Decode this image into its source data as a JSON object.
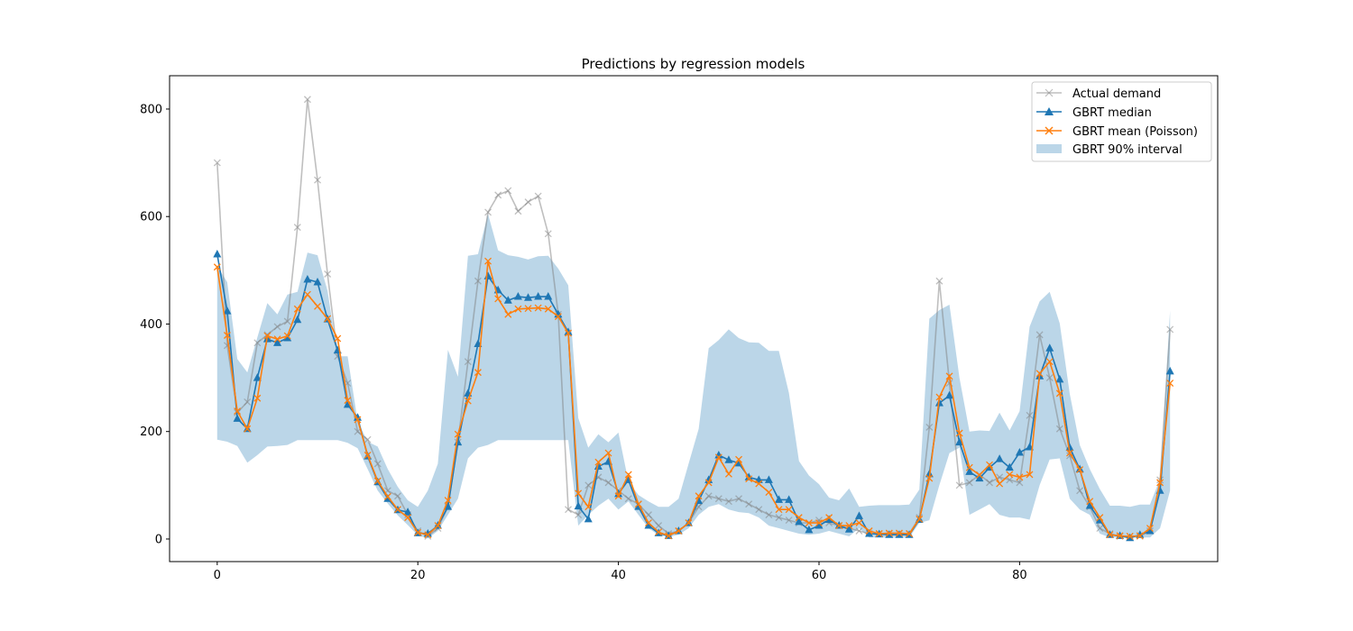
{
  "chart_data": {
    "type": "line",
    "title": "Predictions by regression models",
    "xlabel": "",
    "ylabel": "",
    "xlim": [
      -4.75,
      99.75
    ],
    "ylim": [
      -42,
      862
    ],
    "xticks": [
      0,
      20,
      40,
      60,
      80
    ],
    "yticks": [
      0,
      200,
      400,
      600,
      800
    ],
    "grid": false,
    "legend_position": "top-right",
    "colors": {
      "actual": "#808080",
      "median": "#1f77b4",
      "mean": "#ff7f0e",
      "interval": "#1f77b4"
    },
    "series": [
      {
        "name": "Actual demand",
        "style": "line-x",
        "values": [
          700,
          360,
          235,
          255,
          365,
          380,
          395,
          405,
          580,
          818,
          668,
          493,
          340,
          290,
          200,
          185,
          140,
          90,
          80,
          45,
          15,
          5,
          20,
          60,
          180,
          330,
          480,
          608,
          640,
          648,
          610,
          627,
          638,
          568,
          418,
          55,
          45,
          100,
          115,
          105,
          90,
          75,
          65,
          45,
          25,
          10,
          15,
          30,
          60,
          80,
          75,
          70,
          75,
          65,
          55,
          45,
          40,
          35,
          30,
          30,
          35,
          30,
          25,
          20,
          15,
          10,
          10,
          10,
          10,
          10,
          40,
          208,
          480,
          290,
          100,
          105,
          120,
          105,
          115,
          110,
          105,
          230,
          380,
          300,
          205,
          155,
          90,
          60,
          20,
          10,
          5,
          5,
          5,
          15,
          110,
          390
        ]
      },
      {
        "name": "GBRT median",
        "style": "line-triangle",
        "values": [
          530,
          424,
          224,
          205,
          300,
          372,
          365,
          374,
          408,
          483,
          478,
          409,
          351,
          250,
          226,
          154,
          106,
          75,
          54,
          50,
          11,
          10,
          25,
          60,
          180,
          271,
          363,
          489,
          463,
          444,
          451,
          449,
          451,
          451,
          418,
          385,
          61,
          37,
          135,
          144,
          84,
          110,
          60,
          25,
          11,
          6,
          15,
          30,
          71,
          110,
          156,
          147,
          141,
          115,
          110,
          110,
          73,
          73,
          32,
          17,
          25,
          36,
          25,
          18,
          43,
          10,
          9,
          8,
          8,
          8,
          36,
          121,
          253,
          267,
          180,
          125,
          113,
          133,
          149,
          133,
          161,
          171,
          303,
          355,
          297,
          170,
          130,
          62,
          35,
          8,
          6,
          2,
          8,
          15,
          90,
          312
        ]
      },
      {
        "name": "GBRT mean (Poisson)",
        "style": "line-x",
        "values": [
          506,
          379,
          238,
          205,
          262,
          378,
          372,
          378,
          428,
          455,
          433,
          410,
          373,
          258,
          222,
          156,
          108,
          79,
          55,
          40,
          12,
          8,
          25,
          72,
          195,
          257,
          310,
          517,
          447,
          418,
          428,
          429,
          430,
          428,
          414,
          383,
          85,
          60,
          143,
          160,
          80,
          120,
          65,
          30,
          13,
          6,
          15,
          30,
          80,
          105,
          152,
          121,
          148,
          112,
          103,
          87,
          55,
          55,
          40,
          30,
          30,
          40,
          25,
          25,
          30,
          15,
          10,
          11,
          11,
          10,
          37,
          113,
          264,
          303,
          197,
          133,
          119,
          138,
          103,
          120,
          115,
          120,
          308,
          330,
          271,
          160,
          129,
          70,
          40,
          8,
          6,
          5,
          6,
          20,
          105,
          290
        ]
      },
      {
        "name": "GBRT 90% interval",
        "style": "band",
        "lower": [
          185,
          181,
          173,
          142,
          156,
          172,
          173,
          175,
          184,
          184,
          184,
          184,
          184,
          179,
          169,
          130,
          90,
          66,
          44,
          26,
          7,
          1,
          15,
          45,
          75,
          150,
          170,
          175,
          184,
          184,
          184,
          184,
          184,
          184,
          184,
          184,
          25,
          45,
          62,
          75,
          55,
          70,
          45,
          20,
          7,
          4,
          8,
          20,
          45,
          60,
          65,
          55,
          50,
          48,
          40,
          25,
          20,
          15,
          10,
          8,
          10,
          15,
          10,
          5,
          20,
          3,
          3,
          3,
          3,
          3,
          30,
          35,
          100,
          160,
          170,
          45,
          55,
          65,
          45,
          40,
          40,
          36,
          100,
          148,
          150,
          75,
          55,
          45,
          10,
          3,
          3,
          2,
          3,
          3,
          20,
          90
        ],
        "upper": [
          508,
          478,
          335,
          310,
          375,
          439,
          418,
          455,
          460,
          533,
          528,
          462,
          340,
          340,
          219,
          181,
          172,
          130,
          97,
          72,
          60,
          90,
          140,
          352,
          302,
          527,
          530,
          605,
          537,
          528,
          525,
          520,
          526,
          527,
          503,
          472,
          225,
          170,
          195,
          180,
          198,
          107,
          82,
          70,
          60,
          60,
          75,
          140,
          205,
          355,
          370,
          390,
          374,
          366,
          365,
          350,
          350,
          272,
          145,
          118,
          102,
          77,
          72,
          94,
          60,
          62,
          63,
          63,
          63,
          64,
          92,
          410,
          426,
          436,
          300,
          200,
          202,
          201,
          235,
          202,
          238,
          395,
          442,
          460,
          401,
          270,
          175,
          130,
          93,
          62,
          62,
          60,
          64,
          64,
          112,
          425
        ]
      }
    ]
  },
  "legend": {
    "items": [
      {
        "label": "Actual demand"
      },
      {
        "label": "GBRT median"
      },
      {
        "label": "GBRT mean (Poisson)"
      },
      {
        "label": "GBRT 90% interval"
      }
    ]
  }
}
